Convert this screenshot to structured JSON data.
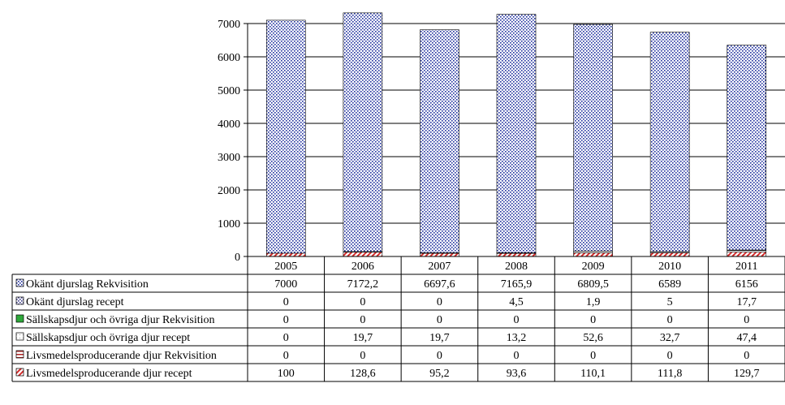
{
  "chart_data": {
    "type": "bar",
    "stacked": true,
    "categories": [
      "2005",
      "2006",
      "2007",
      "2008",
      "2009",
      "2010",
      "2011"
    ],
    "ylim": [
      0,
      7000
    ],
    "yticks": [
      "0",
      "1000",
      "2000",
      "3000",
      "4000",
      "5000",
      "6000",
      "7000"
    ],
    "grid": true,
    "legend_placement": "data-table-left",
    "series": [
      {
        "name": "Okänt djurslag Rekvisition",
        "values": [
          7000,
          7172.2,
          6697.6,
          7165.9,
          6809.5,
          6589,
          6156
        ],
        "labels": [
          "7000",
          "7172,2",
          "6697,6",
          "7165,9",
          "6809,5",
          "6589",
          "6156"
        ],
        "color": "#1f2f9e",
        "pattern": "dots"
      },
      {
        "name": "Okänt djurslag recept",
        "values": [
          0,
          0,
          0,
          4.5,
          1.9,
          5,
          17.7
        ],
        "labels": [
          "0",
          "0",
          "0",
          "4,5",
          "1,9",
          "5",
          "17,7"
        ],
        "color": "#3a3a8a",
        "pattern": "dots-dark"
      },
      {
        "name": "Sällskapsdjur och övriga djur Rekvisition",
        "values": [
          0,
          0,
          0,
          0,
          0,
          0,
          0
        ],
        "labels": [
          "0",
          "0",
          "0",
          "0",
          "0",
          "0",
          "0"
        ],
        "color": "#2ea83a",
        "pattern": "solid"
      },
      {
        "name": "Sällskapsdjur och övriga djur recept",
        "values": [
          0,
          19.7,
          19.7,
          13.2,
          52.6,
          32.7,
          47.4
        ],
        "labels": [
          "0",
          "19,7",
          "19,7",
          "13,2",
          "52,6",
          "32,7",
          "47,4"
        ],
        "color": "#e8e8e8",
        "pattern": "light"
      },
      {
        "name": "Livsmedelsproducerande djur Rekvisition",
        "values": [
          0,
          0,
          0,
          0,
          0,
          0,
          0
        ],
        "labels": [
          "0",
          "0",
          "0",
          "0",
          "0",
          "0",
          "0"
        ],
        "color": "#b22222",
        "pattern": "hlines"
      },
      {
        "name": "Livsmedelsproducerande djur recept",
        "values": [
          100,
          128.6,
          95.2,
          93.6,
          110.1,
          111.8,
          129.7
        ],
        "labels": [
          "100",
          "128,6",
          "95,2",
          "93,6",
          "110,1",
          "111,8",
          "129,7"
        ],
        "color": "#d42a2a",
        "pattern": "diagonal"
      }
    ]
  }
}
